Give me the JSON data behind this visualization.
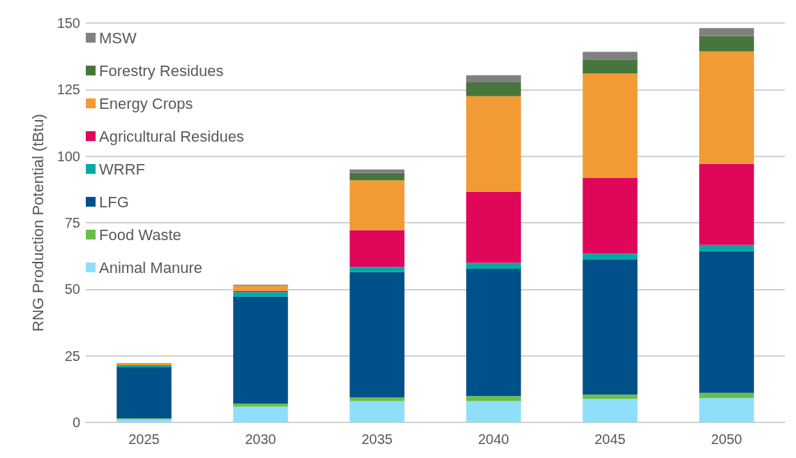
{
  "chart_data": {
    "type": "bar",
    "stacked": true,
    "ylabel": "RNG Production Potential (tBtu)",
    "categories": [
      "2025",
      "2030",
      "2035",
      "2040",
      "2045",
      "2050"
    ],
    "series": [
      {
        "name": "Animal Manure",
        "color": "#8fdefa",
        "values": [
          1.1,
          5.9,
          8.0,
          8.0,
          8.8,
          9.1
        ]
      },
      {
        "name": "Food Waste",
        "color": "#6abf4b",
        "values": [
          0.4,
          1.2,
          1.4,
          1.9,
          1.6,
          2.0
        ]
      },
      {
        "name": "LFG",
        "color": "#00508a",
        "values": [
          19.2,
          40.2,
          47.1,
          47.8,
          50.7,
          53.3
        ]
      },
      {
        "name": "WRRF",
        "color": "#00aaa8",
        "values": [
          0.6,
          1.7,
          1.9,
          2.2,
          2.2,
          2.3
        ]
      },
      {
        "name": "Agricultural Residues",
        "color": "#e0065a",
        "values": [
          0.2,
          0.4,
          13.8,
          26.8,
          28.6,
          30.4
        ]
      },
      {
        "name": "Energy Crops",
        "color": "#f29a33",
        "values": [
          0.6,
          2.0,
          18.7,
          35.8,
          39.2,
          42.2
        ]
      },
      {
        "name": "Forestry Residues",
        "color": "#46763b",
        "values": [
          0.1,
          0.2,
          2.8,
          5.2,
          5.2,
          5.8
        ]
      },
      {
        "name": "MSW",
        "color": "#808080",
        "values": [
          0.1,
          0.1,
          1.3,
          2.7,
          2.9,
          3.0
        ]
      }
    ],
    "ylim": [
      0,
      150
    ],
    "yticks": [
      0,
      25,
      50,
      75,
      100,
      125,
      150
    ],
    "grid": "y",
    "legend": "top left"
  }
}
